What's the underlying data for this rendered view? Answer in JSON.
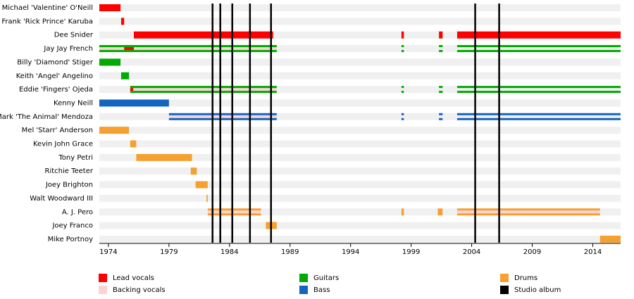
{
  "chart_data": {
    "type": "timeline",
    "xlim": [
      1973.25,
      2016.3
    ],
    "xticks": [
      1974,
      1979,
      1984,
      1989,
      1994,
      1999,
      2004,
      2009,
      2014
    ],
    "roles": [
      {
        "name": "Lead vocals",
        "color": "#ff0000"
      },
      {
        "name": "Backing vocals",
        "color": "#fbd3d3"
      },
      {
        "name": "Guitars",
        "color": "#00aa00"
      },
      {
        "name": "Bass",
        "color": "#1565c0"
      },
      {
        "name": "Drums",
        "color": "#f5a030"
      }
    ],
    "albums": {
      "name": "Studio album",
      "color": "#000000",
      "x": [
        1982.6,
        1983.24,
        1984.23,
        1985.69,
        1987.43,
        2004.29,
        2006.27
      ]
    },
    "members": [
      {
        "name": "Michael 'Valentine' O'Neill",
        "bars": [
          {
            "role": "Lead vocals",
            "style": "full",
            "from": 1973.25,
            "to": 1975.0
          }
        ]
      },
      {
        "name": "Frank 'Rick Prince' Karuba",
        "bars": [
          {
            "role": "Lead vocals",
            "style": "full",
            "from": 1975.05,
            "to": 1975.3
          }
        ]
      },
      {
        "name": "Dee Snider",
        "bars": [
          {
            "role": "Lead vocals",
            "style": "full",
            "from": 1976.1,
            "to": 1987.6
          },
          {
            "role": "Lead vocals",
            "style": "full",
            "from": 1998.2,
            "to": 1998.4
          },
          {
            "role": "Lead vocals",
            "style": "full",
            "from": 2001.3,
            "to": 2001.6
          },
          {
            "role": "Lead vocals",
            "style": "full",
            "from": 2002.8,
            "to": 2016.3
          }
        ]
      },
      {
        "name": "Jay Jay French",
        "bars": [
          {
            "role": "Backing vocals",
            "style": "inner",
            "from": 1973.25,
            "to": 1987.9
          },
          {
            "role": "Lead vocals",
            "style": "inner",
            "from": 1975.3,
            "to": 1976.1
          },
          {
            "role": "Guitars",
            "style": "edges",
            "from": 1973.25,
            "to": 1987.9
          },
          {
            "role": "Guitars",
            "style": "edges",
            "from": 1998.2,
            "to": 1998.4
          },
          {
            "role": "Guitars",
            "style": "edges",
            "from": 2001.3,
            "to": 2001.6
          },
          {
            "role": "Guitars",
            "style": "edges",
            "from": 2002.8,
            "to": 2016.3
          }
        ]
      },
      {
        "name": "Billy 'Diamond' Stiger",
        "bars": [
          {
            "role": "Guitars",
            "style": "full",
            "from": 1973.25,
            "to": 1975.0
          }
        ]
      },
      {
        "name": "Keith 'Angel' Angelino",
        "bars": [
          {
            "role": "Guitars",
            "style": "full",
            "from": 1975.05,
            "to": 1975.7
          }
        ]
      },
      {
        "name": "Eddie 'Fingers' Ojeda",
        "bars": [
          {
            "role": "Backing vocals",
            "style": "inner",
            "from": 1975.8,
            "to": 1987.9
          },
          {
            "role": "Lead vocals",
            "style": "inner",
            "from": 1975.8,
            "to": 1976.05
          },
          {
            "role": "Guitars",
            "style": "edges",
            "from": 1975.8,
            "to": 1987.9
          },
          {
            "role": "Guitars",
            "style": "edges",
            "from": 1998.2,
            "to": 1998.4
          },
          {
            "role": "Guitars",
            "style": "edges",
            "from": 2001.3,
            "to": 2001.6
          },
          {
            "role": "Guitars",
            "style": "edges",
            "from": 2002.8,
            "to": 2016.3
          }
        ]
      },
      {
        "name": "Kenny Neill",
        "bars": [
          {
            "role": "Bass",
            "style": "full",
            "from": 1973.25,
            "to": 1979.0
          }
        ]
      },
      {
        "name": "Mark 'The Animal' Mendoza",
        "bars": [
          {
            "role": "Backing vocals",
            "style": "inner",
            "from": 1979.0,
            "to": 1987.9
          },
          {
            "role": "Bass",
            "style": "edges",
            "from": 1979.0,
            "to": 1987.9
          },
          {
            "role": "Bass",
            "style": "edges",
            "from": 1998.2,
            "to": 1998.4
          },
          {
            "role": "Bass",
            "style": "edges",
            "from": 2001.3,
            "to": 2001.6
          },
          {
            "role": "Bass",
            "style": "edges",
            "from": 2002.8,
            "to": 2016.3
          }
        ]
      },
      {
        "name": "Mel 'Starr' Anderson",
        "bars": [
          {
            "role": "Drums",
            "style": "full",
            "from": 1973.25,
            "to": 1975.7
          }
        ]
      },
      {
        "name": "Kevin John Grace",
        "bars": [
          {
            "role": "Drums",
            "style": "full",
            "from": 1975.8,
            "to": 1976.3
          }
        ]
      },
      {
        "name": "Tony Petri",
        "bars": [
          {
            "role": "Drums",
            "style": "full",
            "from": 1976.3,
            "to": 1980.9
          }
        ]
      },
      {
        "name": "Ritchie Teeter",
        "bars": [
          {
            "role": "Drums",
            "style": "full",
            "from": 1980.8,
            "to": 1981.3
          }
        ]
      },
      {
        "name": "Joey Brighton",
        "bars": [
          {
            "role": "Drums",
            "style": "full",
            "from": 1981.2,
            "to": 1982.2
          }
        ]
      },
      {
        "name": "Walt Woodward III",
        "bars": [
          {
            "role": "Drums",
            "style": "full",
            "from": 1982.1,
            "to": 1982.2
          }
        ]
      },
      {
        "name": "A. J. Pero",
        "bars": [
          {
            "role": "Backing vocals",
            "style": "inner",
            "from": 1982.2,
            "to": 1986.6
          },
          {
            "role": "Drums",
            "style": "edges",
            "from": 1982.2,
            "to": 1986.6
          },
          {
            "role": "Drums",
            "style": "full",
            "from": 1998.2,
            "to": 1998.4
          },
          {
            "role": "Drums",
            "style": "full",
            "from": 2001.2,
            "to": 2001.6
          },
          {
            "role": "Backing vocals",
            "style": "inner",
            "from": 2002.8,
            "to": 2014.6
          },
          {
            "role": "Drums",
            "style": "edges",
            "from": 2002.8,
            "to": 2014.6
          }
        ]
      },
      {
        "name": "Joey Franco",
        "bars": [
          {
            "role": "Drums",
            "style": "full",
            "from": 1987.0,
            "to": 1987.9
          }
        ]
      },
      {
        "name": "Mike Portnoy",
        "bars": [
          {
            "role": "Drums",
            "style": "full",
            "from": 2014.6,
            "to": 2016.3
          }
        ]
      }
    ]
  }
}
